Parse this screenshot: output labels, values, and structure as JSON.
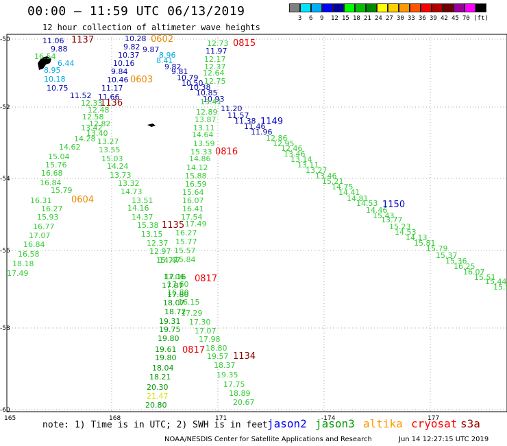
{
  "title": "00:00 — 11:59 UTC 06/13/2019",
  "subtitle": "12 hour collection of altimeter wave heights",
  "scale": {
    "colors": [
      "#808080",
      "#00e5ff",
      "#00b0ff",
      "#0000ff",
      "#0000a0",
      "#00ff00",
      "#00c000",
      "#008800",
      "#ffff00",
      "#ffd000",
      "#ff9900",
      "#ff5500",
      "#ff0000",
      "#b00000",
      "#700000",
      "#990099",
      "#ff00ff",
      "#000000"
    ],
    "labels": [
      "3",
      "6",
      "9",
      "12",
      "15",
      "18",
      "21",
      "24",
      "27",
      "30",
      "33",
      "36",
      "39",
      "42",
      "45",
      "70 (ft)"
    ]
  },
  "axes": {
    "lat_labels": [
      "-50",
      "-52",
      "-54",
      "-56",
      "-58",
      "-60"
    ],
    "lon_labels": [
      "165",
      "168",
      "171",
      "-174",
      "177"
    ]
  },
  "tracks": {
    "jason2_a": {
      "color": "#0000aa",
      "values": [
        "11.06",
        "9.88",
        "10.28",
        "9.82",
        "9.87",
        "10.37",
        "10.16",
        "9.84",
        "10.46",
        "10.75",
        "11.17",
        "11.52",
        "11.66"
      ]
    },
    "jason2_b": {
      "color": "#0000aa",
      "values": [
        "9.82",
        "9.81",
        "10.79",
        "10.50",
        "10.38",
        "10.85",
        "10.93",
        "11.20",
        "11.57",
        "11.38",
        "11.46",
        "11.96",
        "11.97"
      ]
    },
    "jason3_light_a": {
      "color": "#33cc33",
      "values": [
        "16.54",
        "12.33",
        "12.48",
        "12.58",
        "12.82",
        "13.42",
        "13.40",
        "14.28",
        "13.27",
        "14.62",
        "13.55",
        "15.04",
        "15.03",
        "15.76",
        "14.24",
        "16.68",
        "13.73",
        "16.84",
        "13.32",
        "15.79",
        "14.73",
        "16.31",
        "13.51",
        "16.27",
        "14.16",
        "15.93",
        "14.37",
        "16.77",
        "15.38",
        "17.07",
        "13.15",
        "16.84",
        "12.37",
        "16.58",
        "12.97",
        "18.18",
        "15.77",
        "17.49",
        "14.47"
      ]
    },
    "jason3_light_b": {
      "color": "#33cc33",
      "values": [
        "12.73",
        "12.17",
        "12.37",
        "12.64",
        "12.75",
        "13.41",
        "12.89",
        "13.87",
        "13.11",
        "14.64",
        "13.59",
        "15.33",
        "14.86",
        "14.12",
        "15.88",
        "16.59",
        "15.64",
        "16.07",
        "16.41",
        "17.54",
        "17.49",
        "16.27",
        "15.77",
        "15.57",
        "15.84",
        "17.06",
        "17.60",
        "16.80",
        "16.15",
        "17.29",
        "17.30",
        "17.07",
        "17.98",
        "18.80",
        "19.57",
        "18.37",
        "19.35",
        "17.75",
        "18.89",
        "20.67"
      ]
    },
    "jason3_dark": {
      "color": "#009900",
      "values": [
        "18.07",
        "18.72",
        "19.31",
        "19.75",
        "19.80",
        "19.61",
        "19.80",
        "18.04",
        "18.21",
        "20.30",
        "20.80",
        "17.16",
        "17.87",
        "17.80"
      ]
    },
    "jason3_east": {
      "color": "#33cc33",
      "values": [
        "12.86",
        "12.95",
        "12.46",
        "13.46",
        "13.14",
        "13.11",
        "13.27",
        "13.46",
        "15.21",
        "14.75",
        "14.41",
        "14.81",
        "14.53",
        "14.46",
        "15.43",
        "13.77",
        "15.23",
        "14.53",
        "14.13",
        "15.81",
        "15.79",
        "15.37",
        "15.36",
        "16.25",
        "16.07",
        "15.51",
        "15.44",
        "15.5"
      ]
    },
    "altika_a": {
      "color": "#e08800",
      "values": [
        "6.44",
        "8.95",
        "8.96",
        "8.41"
      ]
    },
    "cyan_values": {
      "color": "#00aadd",
      "values": [
        "6.44",
        "8.95",
        "8.96",
        "8.41",
        "10.18"
      ]
    },
    "yellow_value": {
      "color": "#dddd00",
      "values": [
        "21.47"
      ]
    }
  },
  "time_labels": [
    {
      "text": "1137",
      "color": "#880000"
    },
    {
      "text": "0602",
      "color": "#ee8800"
    },
    {
      "text": "0815",
      "color": "#ee0000"
    },
    {
      "text": "0603",
      "color": "#ee8800"
    },
    {
      "text": "1136",
      "color": "#880000"
    },
    {
      "text": "1149",
      "color": "#0000cc"
    },
    {
      "text": "0816",
      "color": "#ee0000"
    },
    {
      "text": "0604",
      "color": "#ee8800"
    },
    {
      "text": "1150",
      "color": "#0000cc"
    },
    {
      "text": "1135",
      "color": "#880000"
    },
    {
      "text": "0817",
      "color": "#ee0000"
    },
    {
      "text": "0817",
      "color": "#ee0000"
    },
    {
      "text": "1134",
      "color": "#880000"
    }
  ],
  "footer": {
    "note": "note: 1) Time is in UTC; 2) SWH is in feet",
    "missions": [
      {
        "name": "jason2",
        "color": "#0000ee"
      },
      {
        "name": "jason3",
        "color": "#009900"
      },
      {
        "name": "altika",
        "color": "#ff9900"
      },
      {
        "name": "cryosat",
        "color": "#ff0000"
      },
      {
        "name": "s3a",
        "color": "#990000"
      }
    ],
    "credit": "NOAA/NESDIS Center for Satellite Applications and Research",
    "timestamp": "Jun 14 12:27:15 UTC 2019"
  }
}
